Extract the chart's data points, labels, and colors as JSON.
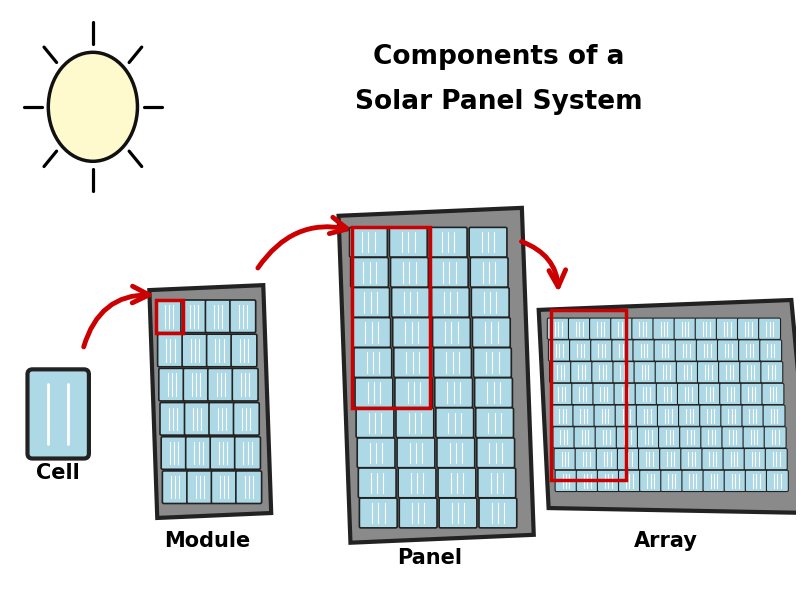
{
  "title_line1": "Components of a",
  "title_line2": "Solar Panel System",
  "labels": [
    "Cell",
    "Module",
    "Panel",
    "Array"
  ],
  "background_color": "#ffffff",
  "title_fontsize": 19,
  "label_fontsize": 15,
  "sun_color": "#FFFACD",
  "sun_outline": "#111111",
  "cell_color": "#add8e6",
  "gray_color": "#8a8a8a",
  "dark_color": "#222222",
  "highlight_color": "#cc0000",
  "arrow_color": "#cc0000"
}
